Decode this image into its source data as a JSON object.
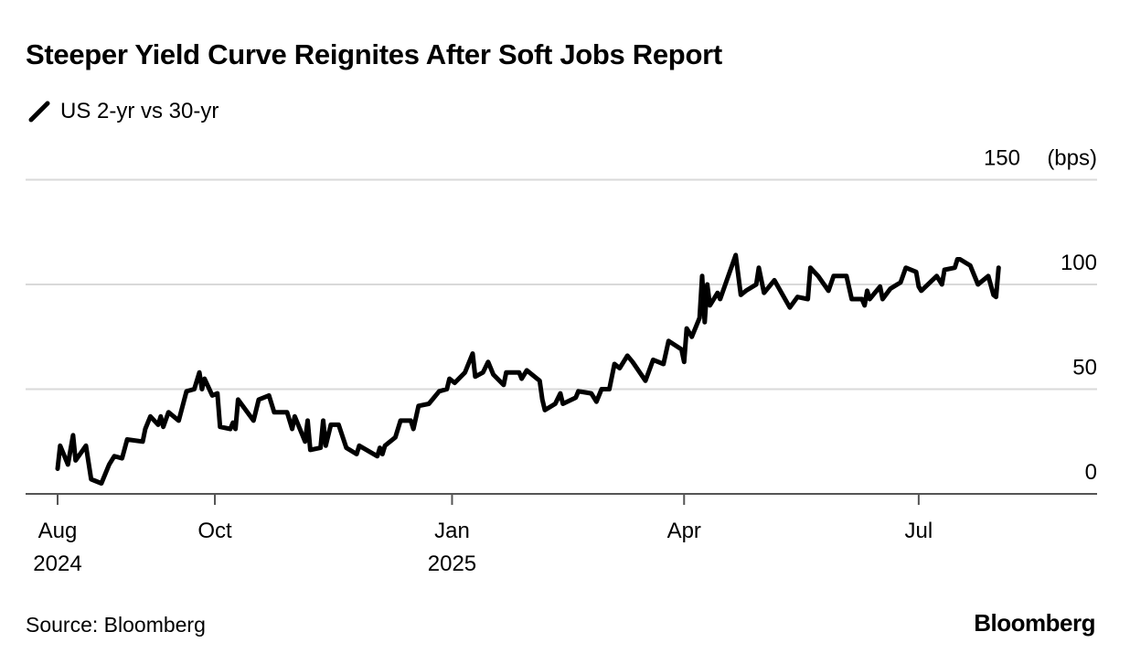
{
  "title": "Steeper Yield Curve Reignites After Soft Jobs Report",
  "legend": {
    "icon": "line-slash-icon",
    "label": "US 2-yr vs 30-yr",
    "color": "#000000"
  },
  "source": "Source: Bloomberg",
  "logo": "Bloomberg",
  "chart_data": {
    "type": "line",
    "title": "Steeper Yield Curve Reignites After Soft Jobs Report",
    "ylabel": "",
    "yunit": "(bps)",
    "ylim": [
      0,
      150
    ],
    "yticks": [
      0,
      50,
      100,
      150
    ],
    "ytick_labels": [
      "0",
      "50",
      "100",
      "150"
    ],
    "xlim": [
      "2024-08-01",
      "2025-09-25"
    ],
    "xticks": [
      {
        "date": "2024-08-01",
        "label": "Aug",
        "year": "2024"
      },
      {
        "date": "2024-10-01",
        "label": "Oct",
        "year": ""
      },
      {
        "date": "2025-01-01",
        "label": "Jan",
        "year": "2025"
      },
      {
        "date": "2025-04-01",
        "label": "Apr",
        "year": ""
      },
      {
        "date": "2025-07-01",
        "label": "Jul",
        "year": ""
      }
    ],
    "grid": true,
    "legend_position": "top-left",
    "series": [
      {
        "name": "US 2-yr vs 30-yr",
        "color": "#000000",
        "points": [
          [
            "2024-08-01",
            12
          ],
          [
            "2024-08-02",
            23
          ],
          [
            "2024-08-05",
            14
          ],
          [
            "2024-08-07",
            28
          ],
          [
            "2024-08-08",
            16
          ],
          [
            "2024-08-12",
            23
          ],
          [
            "2024-08-14",
            7
          ],
          [
            "2024-08-18",
            5
          ],
          [
            "2024-08-21",
            14
          ],
          [
            "2024-08-23",
            18
          ],
          [
            "2024-08-26",
            17
          ],
          [
            "2024-08-28",
            26
          ],
          [
            "2024-09-03",
            25
          ],
          [
            "2024-09-04",
            31
          ],
          [
            "2024-09-06",
            37
          ],
          [
            "2024-09-09",
            33
          ],
          [
            "2024-09-10",
            37
          ],
          [
            "2024-09-11",
            32
          ],
          [
            "2024-09-13",
            39
          ],
          [
            "2024-09-17",
            35
          ],
          [
            "2024-09-20",
            49
          ],
          [
            "2024-09-23",
            50
          ],
          [
            "2024-09-25",
            58
          ],
          [
            "2024-09-26",
            50
          ],
          [
            "2024-09-27",
            55
          ],
          [
            "2024-09-30",
            47
          ],
          [
            "2024-10-02",
            48
          ],
          [
            "2024-10-03",
            32
          ],
          [
            "2024-10-07",
            31
          ],
          [
            "2024-10-08",
            34
          ],
          [
            "2024-10-09",
            31
          ],
          [
            "2024-10-10",
            45
          ],
          [
            "2024-10-16",
            35
          ],
          [
            "2024-10-18",
            45
          ],
          [
            "2024-10-22",
            47
          ],
          [
            "2024-10-24",
            39
          ],
          [
            "2024-10-29",
            39
          ],
          [
            "2024-10-31",
            31
          ],
          [
            "2024-11-01",
            37
          ],
          [
            "2024-11-05",
            25
          ],
          [
            "2024-11-06",
            35
          ],
          [
            "2024-11-07",
            21
          ],
          [
            "2024-11-11",
            22
          ],
          [
            "2024-11-12",
            35
          ],
          [
            "2024-11-13",
            23
          ],
          [
            "2024-11-15",
            33
          ],
          [
            "2024-11-18",
            33
          ],
          [
            "2024-11-21",
            22
          ],
          [
            "2024-11-25",
            19
          ],
          [
            "2024-11-26",
            23
          ],
          [
            "2024-12-03",
            18
          ],
          [
            "2024-12-04",
            22
          ],
          [
            "2024-12-05",
            19
          ],
          [
            "2024-12-06",
            23
          ],
          [
            "2024-12-10",
            27
          ],
          [
            "2024-12-12",
            35
          ],
          [
            "2024-12-16",
            35
          ],
          [
            "2024-12-17",
            31
          ],
          [
            "2024-12-19",
            42
          ],
          [
            "2024-12-23",
            43
          ],
          [
            "2024-12-27",
            49
          ],
          [
            "2024-12-30",
            50
          ],
          [
            "2024-12-31",
            55
          ],
          [
            "2025-01-02",
            53
          ],
          [
            "2025-01-06",
            58
          ],
          [
            "2025-01-09",
            67
          ],
          [
            "2025-01-10",
            56
          ],
          [
            "2025-01-13",
            58
          ],
          [
            "2025-01-15",
            63
          ],
          [
            "2025-01-17",
            57
          ],
          [
            "2025-01-21",
            52
          ],
          [
            "2025-01-22",
            58
          ],
          [
            "2025-01-27",
            58
          ],
          [
            "2025-01-28",
            55
          ],
          [
            "2025-01-30",
            59
          ],
          [
            "2025-02-04",
            54
          ],
          [
            "2025-02-05",
            45
          ],
          [
            "2025-02-06",
            40
          ],
          [
            "2025-02-10",
            43
          ],
          [
            "2025-02-12",
            48
          ],
          [
            "2025-02-13",
            43
          ],
          [
            "2025-02-18",
            46
          ],
          [
            "2025-02-19",
            49
          ],
          [
            "2025-02-24",
            48
          ],
          [
            "2025-02-26",
            44
          ],
          [
            "2025-02-28",
            50
          ],
          [
            "2025-03-03",
            50
          ],
          [
            "2025-03-04",
            56
          ],
          [
            "2025-03-05",
            62
          ],
          [
            "2025-03-07",
            60
          ],
          [
            "2025-03-10",
            66
          ],
          [
            "2025-03-12",
            63
          ],
          [
            "2025-03-17",
            54
          ],
          [
            "2025-03-20",
            64
          ],
          [
            "2025-03-24",
            62
          ],
          [
            "2025-03-26",
            73
          ],
          [
            "2025-03-31",
            69
          ],
          [
            "2025-04-01",
            63
          ],
          [
            "2025-04-02",
            79
          ],
          [
            "2025-04-04",
            75
          ],
          [
            "2025-04-07",
            84
          ],
          [
            "2025-04-08",
            104
          ],
          [
            "2025-04-09",
            82
          ],
          [
            "2025-04-10",
            100
          ],
          [
            "2025-04-11",
            90
          ],
          [
            "2025-04-14",
            96
          ],
          [
            "2025-04-15",
            93
          ],
          [
            "2025-04-21",
            114
          ],
          [
            "2025-04-23",
            95
          ],
          [
            "2025-04-25",
            97
          ],
          [
            "2025-04-29",
            100
          ],
          [
            "2025-04-30",
            108
          ],
          [
            "2025-05-02",
            96
          ],
          [
            "2025-05-06",
            102
          ],
          [
            "2025-05-12",
            89
          ],
          [
            "2025-05-15",
            94
          ],
          [
            "2025-05-19",
            93
          ],
          [
            "2025-05-20",
            108
          ],
          [
            "2025-05-23",
            104
          ],
          [
            "2025-05-27",
            97
          ],
          [
            "2025-05-29",
            104
          ],
          [
            "2025-06-03",
            104
          ],
          [
            "2025-06-05",
            93
          ],
          [
            "2025-06-09",
            93
          ],
          [
            "2025-06-10",
            90
          ],
          [
            "2025-06-11",
            97
          ],
          [
            "2025-06-12",
            93
          ],
          [
            "2025-06-16",
            99
          ],
          [
            "2025-06-17",
            93
          ],
          [
            "2025-06-20",
            98
          ],
          [
            "2025-06-24",
            101
          ],
          [
            "2025-06-26",
            108
          ],
          [
            "2025-06-30",
            106
          ],
          [
            "2025-07-01",
            99
          ],
          [
            "2025-07-02",
            97
          ],
          [
            "2025-07-08",
            104
          ],
          [
            "2025-07-10",
            100
          ],
          [
            "2025-07-11",
            107
          ],
          [
            "2025-07-15",
            108
          ],
          [
            "2025-07-16",
            112
          ],
          [
            "2025-07-17",
            112
          ],
          [
            "2025-07-21",
            109
          ],
          [
            "2025-07-24",
            100
          ],
          [
            "2025-07-28",
            104
          ],
          [
            "2025-07-30",
            95
          ],
          [
            "2025-07-31",
            94
          ],
          [
            "2025-08-01",
            108
          ]
        ]
      }
    ]
  }
}
